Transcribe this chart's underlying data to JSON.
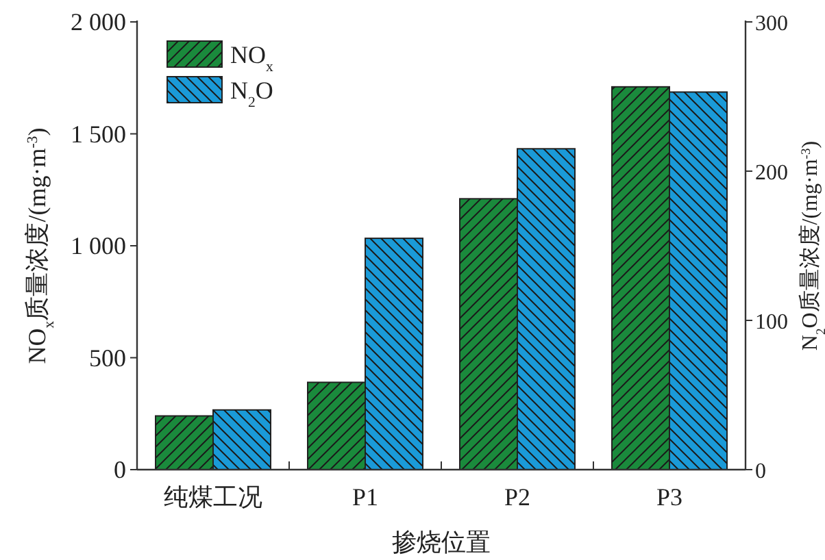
{
  "chart_data": {
    "type": "bar",
    "categories": [
      "纯煤工况",
      "P1",
      "P2",
      "P3"
    ],
    "xlabel": "掺烧位置",
    "ylabel": "NO$_{x}$质量浓度/(mg·m$^{-3}$)",
    "y2label": "N$_{2}$O质量浓度/(mg·m$^{-3}$)",
    "ylim": [
      0,
      2000
    ],
    "yticks": [
      0,
      500,
      {
        "value": 1000,
        "label": "1 000"
      },
      {
        "value": 1500,
        "label": "1 500"
      },
      {
        "value": 2000,
        "label": "2 000"
      }
    ],
    "y2lim": [
      0,
      300
    ],
    "y2ticks": [
      0,
      100,
      200,
      300
    ],
    "legend": "top left",
    "series": [
      {
        "name": "NO$_{x}$",
        "color": "#1a8a3c",
        "values": [
          240,
          390,
          1210,
          1710
        ]
      },
      {
        "name": "N$_{2}$O",
        "color": "#1a9ad8",
        "values": [
          40,
          155,
          215,
          253
        ],
        "axis": "y2"
      }
    ]
  }
}
